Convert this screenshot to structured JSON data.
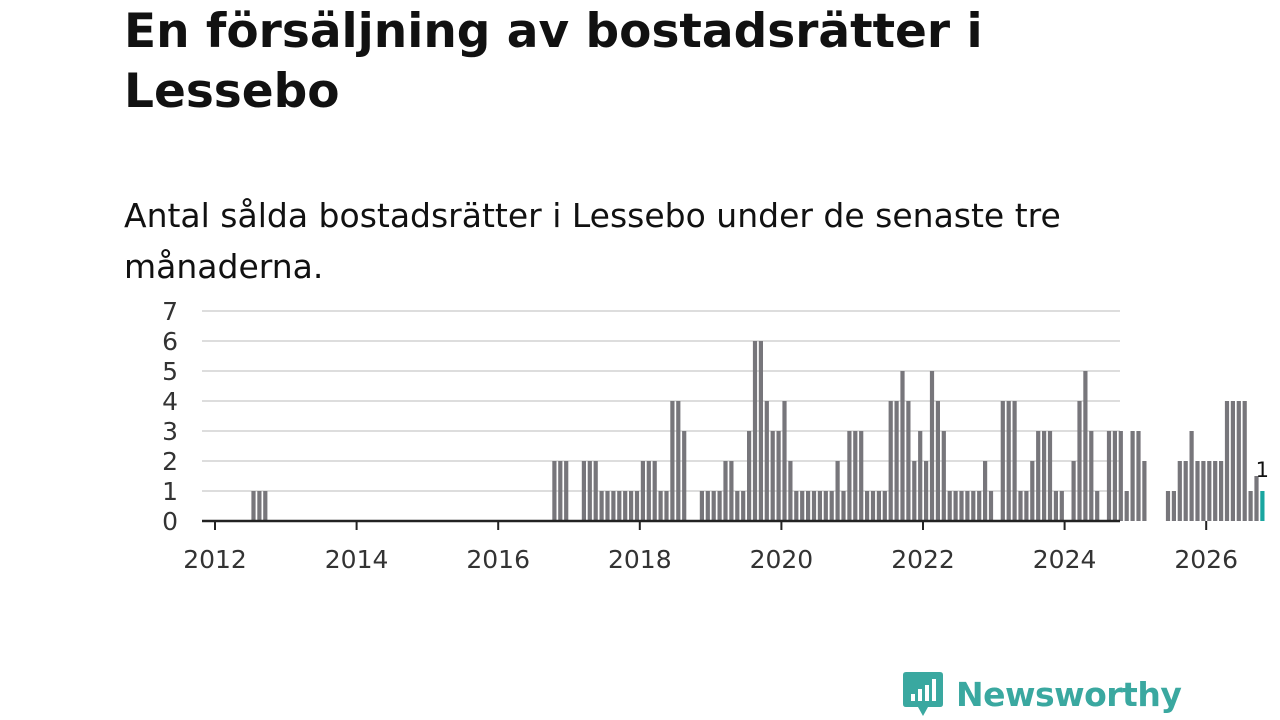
{
  "header": {
    "title": "En försäljning av bostadsrätter i Lessebo",
    "subtitle": "Antal sålda bostadsrätter i Lessebo under de senaste tre månaderna."
  },
  "brand": {
    "name": "Newsworthy",
    "icon": "newsworthy-bar-chart-icon",
    "color": "#3aa8a0"
  },
  "colors": {
    "bar": "#77767b",
    "highlight": "#1aa6a0",
    "axis": "#222222",
    "grid": "#dddddd"
  },
  "chart_data": {
    "type": "bar",
    "title": "En försäljning av bostadsrätter i Lessebo",
    "subtitle": "Antal sålda bostadsrätter i Lessebo under de senaste tre månaderna.",
    "xlabel": "",
    "ylabel": "",
    "ylim": [
      0,
      7
    ],
    "yticks": [
      "0",
      "1",
      "2",
      "3",
      "4",
      "5",
      "6",
      "7"
    ],
    "xticks": [
      "2012",
      "2014",
      "2016",
      "2018",
      "2020",
      "2022",
      "2024",
      "2026"
    ],
    "xtick_months": [
      0,
      24,
      48,
      72,
      96,
      120,
      144,
      168
    ],
    "start": "2012-01",
    "grid": true,
    "highlight_label": "1",
    "values": [
      0,
      0,
      0,
      0,
      0,
      0,
      1,
      1,
      1,
      0,
      0,
      0,
      0,
      0,
      0,
      0,
      0,
      0,
      0,
      0,
      0,
      0,
      0,
      0,
      0,
      0,
      0,
      0,
      0,
      0,
      0,
      0,
      0,
      0,
      0,
      0,
      0,
      0,
      0,
      0,
      0,
      0,
      0,
      0,
      0,
      0,
      0,
      0,
      0,
      0,
      0,
      0,
      0,
      0,
      0,
      0,
      0,
      2,
      2,
      2,
      0,
      0,
      2,
      2,
      2,
      1,
      1,
      1,
      1,
      1,
      1,
      1,
      2,
      2,
      2,
      1,
      1,
      4,
      4,
      3,
      0,
      0,
      1,
      1,
      1,
      1,
      2,
      2,
      1,
      1,
      3,
      6,
      6,
      4,
      3,
      3,
      4,
      2,
      1,
      1,
      1,
      1,
      1,
      1,
      1,
      2,
      1,
      3,
      3,
      3,
      1,
      1,
      1,
      1,
      4,
      4,
      5,
      4,
      2,
      3,
      2,
      5,
      4,
      3,
      1,
      1,
      1,
      1,
      1,
      1,
      2,
      1,
      0,
      4,
      4,
      4,
      1,
      1,
      2,
      3,
      3,
      3,
      1,
      1,
      0,
      2,
      4,
      5,
      3,
      1,
      0,
      3,
      3,
      3,
      1,
      3,
      3,
      2,
      0,
      0,
      0,
      1,
      1,
      2,
      2,
      3,
      2,
      2,
      2,
      2,
      2,
      4,
      4,
      4,
      4,
      1,
      1.5,
      1
    ],
    "highlight": [
      0,
      0,
      0,
      0,
      0,
      0,
      0,
      0,
      0,
      0,
      0,
      0,
      0,
      0,
      0,
      0,
      0,
      0,
      0,
      0,
      0,
      0,
      0,
      0,
      0,
      0,
      0,
      0,
      0,
      0,
      0,
      0,
      0,
      0,
      0,
      0,
      0,
      0,
      0,
      0,
      0,
      0,
      0,
      0,
      0,
      0,
      0,
      0,
      0,
      0,
      0,
      0,
      0,
      0,
      0,
      0,
      0,
      0,
      0,
      0,
      0,
      0,
      0,
      0,
      0,
      0,
      0,
      0,
      0,
      0,
      0,
      0,
      0,
      0,
      0,
      0,
      0,
      0,
      0,
      0,
      0,
      0,
      0,
      0,
      0,
      0,
      0,
      0,
      0,
      0,
      0,
      0,
      0,
      0,
      0,
      0,
      0,
      0,
      0,
      0,
      0,
      0,
      0,
      0,
      0,
      0,
      0,
      0,
      0,
      0,
      0,
      0,
      0,
      0,
      0,
      0,
      0,
      0,
      0,
      0,
      0,
      0,
      0,
      0,
      0,
      0,
      0,
      0,
      0,
      0,
      0,
      0,
      0,
      0,
      0,
      0,
      0,
      0,
      0,
      0,
      0,
      0,
      0,
      0,
      0,
      0,
      0,
      0,
      0,
      0,
      0,
      0,
      0,
      0,
      0,
      0,
      0,
      0,
      0,
      0,
      0,
      0,
      0,
      0,
      0,
      0,
      0,
      0,
      0,
      0,
      0,
      0,
      0,
      0,
      0,
      0,
      0,
      1
    ]
  }
}
